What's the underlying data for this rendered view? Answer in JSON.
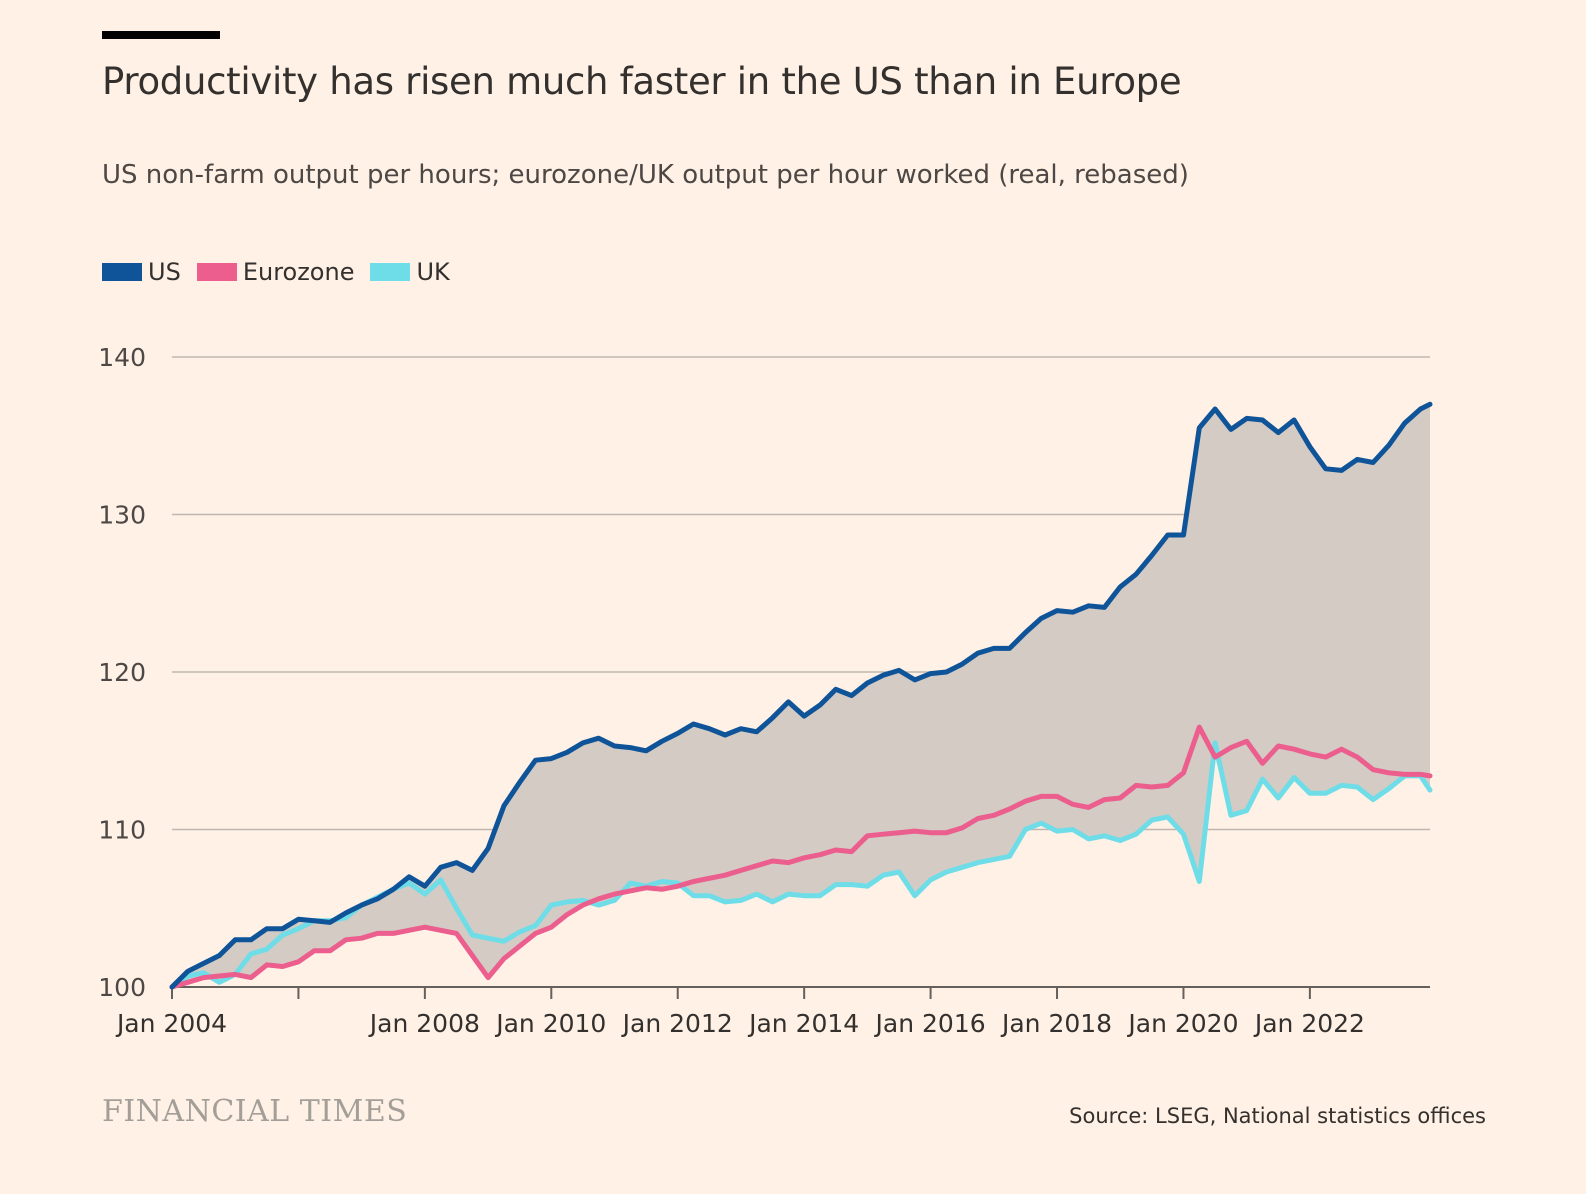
{
  "header": {
    "title": "Productivity has risen much faster in the US than in Europe",
    "subtitle": "US non-farm output per hours; eurozone/UK output per hour worked (real, rebased)"
  },
  "footer": {
    "brand": "FINANCIAL TIMES",
    "source": "Source: LSEG, National statistics offices"
  },
  "colors": {
    "background": "#fff1e5",
    "us": "#0f5499",
    "eurozone": "#eb5e8d",
    "uk": "#6fdde8",
    "gap_fill": "#d3cbc4",
    "grid": "#bfb7af"
  },
  "chart_data": {
    "type": "line",
    "title": "Productivity has risen much faster in the US than in Europe",
    "subtitle": "US non-farm output per hours; eurozone/UK output per hour worked (real, rebased)",
    "x_unit": "year",
    "xlim": [
      2004,
      2023.9
    ],
    "ylim": [
      100,
      140
    ],
    "y_ticks": [
      100,
      110,
      120,
      130,
      140
    ],
    "x_ticks": [
      {
        "value": 2004,
        "label": "Jan 2004"
      },
      {
        "value": 2006,
        "label": ""
      },
      {
        "value": 2008,
        "label": "Jan 2008"
      },
      {
        "value": 2010,
        "label": "Jan 2010"
      },
      {
        "value": 2012,
        "label": "Jan 2012"
      },
      {
        "value": 2014,
        "label": "Jan 2014"
      },
      {
        "value": 2016,
        "label": "Jan 2016"
      },
      {
        "value": 2018,
        "label": "Jan 2018"
      },
      {
        "value": 2020,
        "label": "Jan 2020"
      },
      {
        "value": 2022,
        "label": "Jan 2022"
      }
    ],
    "grid": true,
    "legend_position": "top-left",
    "shading": "area between US and Eurozone/UK lines",
    "series": [
      {
        "name": "US",
        "color": "#0f5499",
        "x": [
          2004.0,
          2004.25,
          2004.5,
          2004.75,
          2005.0,
          2005.25,
          2005.5,
          2005.75,
          2006.0,
          2006.25,
          2006.5,
          2006.75,
          2007.0,
          2007.25,
          2007.5,
          2007.75,
          2008.0,
          2008.25,
          2008.5,
          2008.75,
          2009.0,
          2009.25,
          2009.5,
          2009.75,
          2010.0,
          2010.25,
          2010.5,
          2010.75,
          2011.0,
          2011.25,
          2011.5,
          2011.75,
          2012.0,
          2012.25,
          2012.5,
          2012.75,
          2013.0,
          2013.25,
          2013.5,
          2013.75,
          2014.0,
          2014.25,
          2014.5,
          2014.75,
          2015.0,
          2015.25,
          2015.5,
          2015.75,
          2016.0,
          2016.25,
          2016.5,
          2016.75,
          2017.0,
          2017.25,
          2017.5,
          2017.75,
          2018.0,
          2018.25,
          2018.5,
          2018.75,
          2019.0,
          2019.25,
          2019.5,
          2019.75,
          2020.0,
          2020.25,
          2020.5,
          2020.75,
          2021.0,
          2021.25,
          2021.5,
          2021.75,
          2022.0,
          2022.25,
          2022.5,
          2022.75,
          2023.0,
          2023.25,
          2023.5,
          2023.75,
          2023.9
        ],
        "values": [
          100.0,
          101.0,
          101.5,
          102.0,
          103.0,
          103.0,
          103.7,
          103.7,
          104.3,
          104.2,
          104.1,
          104.7,
          105.2,
          105.6,
          106.2,
          107.0,
          106.4,
          107.6,
          107.9,
          107.4,
          108.8,
          111.5,
          113.0,
          114.4,
          114.5,
          114.9,
          115.5,
          115.8,
          115.3,
          115.2,
          115.0,
          115.6,
          116.1,
          116.7,
          116.4,
          116.0,
          116.4,
          116.2,
          117.1,
          118.1,
          117.2,
          117.9,
          118.9,
          118.5,
          119.3,
          119.8,
          120.1,
          119.5,
          119.9,
          120.0,
          120.5,
          121.2,
          121.5,
          121.5,
          122.5,
          123.4,
          123.9,
          123.8,
          124.2,
          124.1,
          125.4,
          126.2,
          127.4,
          128.7,
          128.7,
          135.5,
          136.7,
          135.4,
          136.1,
          136.0,
          135.2,
          136.0,
          134.3,
          132.9,
          132.8,
          133.5,
          133.3,
          134.4,
          135.8,
          136.7,
          137.0
        ]
      },
      {
        "name": "Eurozone",
        "color": "#eb5e8d",
        "x": [
          2004.0,
          2004.25,
          2004.5,
          2004.75,
          2005.0,
          2005.25,
          2005.5,
          2005.75,
          2006.0,
          2006.25,
          2006.5,
          2006.75,
          2007.0,
          2007.25,
          2007.5,
          2007.75,
          2008.0,
          2008.25,
          2008.5,
          2008.75,
          2009.0,
          2009.25,
          2009.5,
          2009.75,
          2010.0,
          2010.25,
          2010.5,
          2010.75,
          2011.0,
          2011.25,
          2011.5,
          2011.75,
          2012.0,
          2012.25,
          2012.5,
          2012.75,
          2013.0,
          2013.25,
          2013.5,
          2013.75,
          2014.0,
          2014.25,
          2014.5,
          2014.75,
          2015.0,
          2015.25,
          2015.5,
          2015.75,
          2016.0,
          2016.25,
          2016.5,
          2016.75,
          2017.0,
          2017.25,
          2017.5,
          2017.75,
          2018.0,
          2018.25,
          2018.5,
          2018.75,
          2019.0,
          2019.25,
          2019.5,
          2019.75,
          2020.0,
          2020.25,
          2020.5,
          2020.75,
          2021.0,
          2021.25,
          2021.5,
          2021.75,
          2022.0,
          2022.25,
          2022.5,
          2022.75,
          2023.0,
          2023.25,
          2023.5,
          2023.75,
          2023.9
        ],
        "values": [
          100.0,
          100.3,
          100.6,
          100.7,
          100.8,
          100.6,
          101.4,
          101.3,
          101.6,
          102.3,
          102.3,
          103.0,
          103.1,
          103.4,
          103.4,
          103.6,
          103.8,
          103.6,
          103.4,
          102.0,
          100.6,
          101.8,
          102.6,
          103.4,
          103.8,
          104.6,
          105.2,
          105.6,
          105.9,
          106.1,
          106.3,
          106.2,
          106.4,
          106.7,
          106.9,
          107.1,
          107.4,
          107.7,
          108.0,
          107.9,
          108.2,
          108.4,
          108.7,
          108.6,
          109.6,
          109.7,
          109.8,
          109.9,
          109.8,
          109.8,
          110.1,
          110.7,
          110.9,
          111.3,
          111.8,
          112.1,
          112.1,
          111.6,
          111.4,
          111.9,
          112.0,
          112.8,
          112.7,
          112.8,
          113.6,
          116.5,
          114.6,
          115.2,
          115.6,
          114.2,
          115.3,
          115.1,
          114.8,
          114.6,
          115.1,
          114.6,
          113.8,
          113.6,
          113.5,
          113.5,
          113.4
        ]
      },
      {
        "name": "UK",
        "color": "#6fdde8",
        "x": [
          2004.0,
          2004.25,
          2004.5,
          2004.75,
          2005.0,
          2005.25,
          2005.5,
          2005.75,
          2006.0,
          2006.25,
          2006.5,
          2006.75,
          2007.0,
          2007.25,
          2007.5,
          2007.75,
          2008.0,
          2008.25,
          2008.5,
          2008.75,
          2009.0,
          2009.25,
          2009.5,
          2009.75,
          2010.0,
          2010.25,
          2010.5,
          2010.75,
          2011.0,
          2011.25,
          2011.5,
          2011.75,
          2012.0,
          2012.25,
          2012.5,
          2012.75,
          2013.0,
          2013.25,
          2013.5,
          2013.75,
          2014.0,
          2014.25,
          2014.5,
          2014.75,
          2015.0,
          2015.25,
          2015.5,
          2015.75,
          2016.0,
          2016.25,
          2016.5,
          2016.75,
          2017.0,
          2017.25,
          2017.5,
          2017.75,
          2018.0,
          2018.25,
          2018.5,
          2018.75,
          2019.0,
          2019.25,
          2019.5,
          2019.75,
          2020.0,
          2020.25,
          2020.5,
          2020.75,
          2021.0,
          2021.25,
          2021.5,
          2021.75,
          2022.0,
          2022.25,
          2022.5,
          2022.75,
          2023.0,
          2023.25,
          2023.5,
          2023.75,
          2023.9
        ],
        "values": [
          100.0,
          100.7,
          100.9,
          100.3,
          100.8,
          102.1,
          102.4,
          103.3,
          103.7,
          104.2,
          104.2,
          104.4,
          105.2,
          105.7,
          106.2,
          106.6,
          105.9,
          106.8,
          105.0,
          103.3,
          103.1,
          102.9,
          103.5,
          103.9,
          105.2,
          105.4,
          105.5,
          105.2,
          105.5,
          106.6,
          106.4,
          106.7,
          106.6,
          105.8,
          105.8,
          105.4,
          105.5,
          105.9,
          105.4,
          105.9,
          105.8,
          105.8,
          106.5,
          106.5,
          106.4,
          107.1,
          107.3,
          105.8,
          106.8,
          107.3,
          107.6,
          107.9,
          108.1,
          108.3,
          110.0,
          110.4,
          109.9,
          110.0,
          109.4,
          109.6,
          109.3,
          109.7,
          110.6,
          110.8,
          109.7,
          106.7,
          115.5,
          110.9,
          111.2,
          113.2,
          112.0,
          113.3,
          112.3,
          112.3,
          112.8,
          112.7,
          111.9,
          112.6,
          113.4,
          113.4,
          112.5
        ]
      }
    ]
  }
}
